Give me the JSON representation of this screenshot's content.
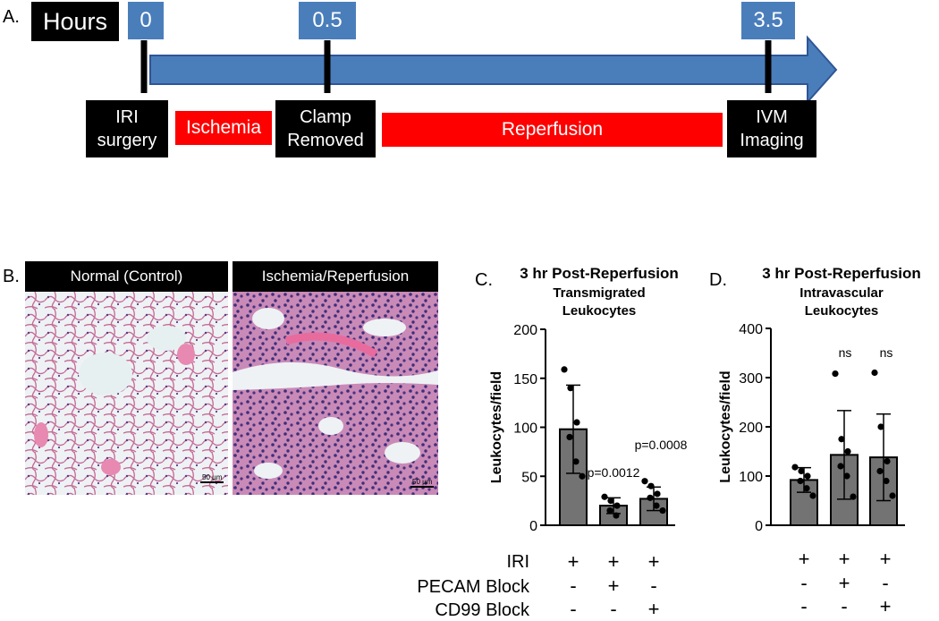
{
  "panelA": {
    "letter": "A.",
    "hours_label": "Hours",
    "time_marks": [
      "0",
      "0.5",
      "3.5"
    ],
    "events": {
      "iri_surgery": "IRI\nsurgery",
      "clamp_removed": "Clamp\nRemoved",
      "ivm_imaging": "IVM\nImaging"
    },
    "phases": {
      "ischemia": "Ischemia",
      "reperfusion": "Reperfusion"
    },
    "colors": {
      "arrow": "#4a7ebb",
      "phase": "#ff0000",
      "event": "#000000"
    }
  },
  "panelB": {
    "letter": "B.",
    "left_title": "Normal (Control)",
    "right_title": "Ischemia/Reperfusion",
    "scale_bar_label": "50 µm"
  },
  "panelC": {
    "letter": "C.",
    "title": "3 hr Post-Reperfusion",
    "subtitle_line1": "Transmigrated",
    "subtitle_line2": "Leukocytes",
    "annotations": [
      "p=0.0012",
      "p=0.0008"
    ]
  },
  "panelD": {
    "letter": "D.",
    "title": "3 hr Post-Reperfusion",
    "subtitle_line1": "Intravascular",
    "subtitle_line2": "Leukocytes",
    "annotations": [
      "ns",
      "ns"
    ]
  },
  "treatment_table": {
    "rows": [
      {
        "label": "IRI",
        "C": [
          "+",
          "+",
          "+"
        ],
        "D": [
          "+",
          "+",
          "+"
        ]
      },
      {
        "label": "PECAM Block",
        "C": [
          "-",
          "+",
          "-"
        ],
        "D": [
          "-",
          "+",
          "-"
        ]
      },
      {
        "label": "CD99 Block",
        "C": [
          "-",
          "-",
          "+"
        ],
        "D": [
          "-",
          "-",
          "+"
        ]
      }
    ]
  },
  "chart_data": [
    {
      "type": "bar",
      "title": "3 hr Post-Reperfusion",
      "subtitle": "Transmigrated Leukocytes",
      "ylabel": "Leukocytes/field",
      "ylim": [
        0,
        200
      ],
      "yticks": [
        0,
        50,
        100,
        150,
        200
      ],
      "categories": [
        "IRI",
        "IRI + PECAM Block",
        "IRI + CD99 Block"
      ],
      "values": [
        98,
        20,
        27
      ],
      "error_sd": [
        45,
        8,
        12
      ],
      "points": [
        [
          159,
          140,
          105,
          90,
          65,
          50
        ],
        [
          29,
          25,
          20,
          15,
          10
        ],
        [
          45,
          40,
          32,
          28,
          20,
          15
        ]
      ],
      "annotations": [
        "",
        "p=0.0012",
        "p=0.0008"
      ],
      "bar_color": "#737373"
    },
    {
      "type": "bar",
      "title": "3 hr Post-Reperfusion",
      "subtitle": "Intravascular Leukocytes",
      "ylabel": "Leukocytes/field",
      "ylim": [
        0,
        400
      ],
      "yticks": [
        0,
        100,
        200,
        300,
        400
      ],
      "categories": [
        "IRI",
        "IRI + PECAM Block",
        "IRI + CD99 Block"
      ],
      "values": [
        92,
        143,
        138
      ],
      "error_sd": [
        25,
        90,
        88
      ],
      "points": [
        [
          118,
          110,
          100,
          90,
          75,
          60
        ],
        [
          308,
          175,
          150,
          120,
          100,
          58
        ],
        [
          310,
          200,
          130,
          110,
          90,
          60
        ]
      ],
      "annotations": [
        "",
        "ns",
        "ns"
      ],
      "bar_color": "#737373"
    }
  ]
}
